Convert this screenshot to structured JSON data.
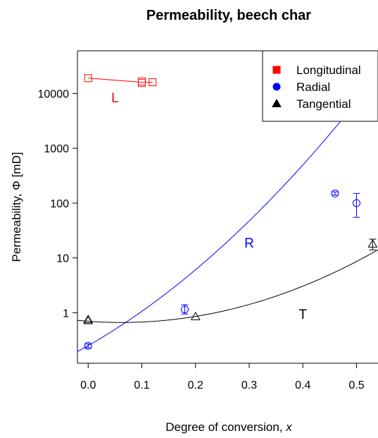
{
  "chart_data": {
    "type": "scatter",
    "title": "Permeability, beech char",
    "xlabel": "Degree of conversion, x",
    "ylabel": "Permeability, Φ [mD]",
    "xlim": [
      -0.02,
      0.54
    ],
    "ylim": [
      0.12,
      60000
    ],
    "y_scale": "log",
    "grid": false,
    "legend_position": "top-right",
    "x_ticks": [
      {
        "value": 0.0,
        "label": "0.0"
      },
      {
        "value": 0.1,
        "label": "0.1"
      },
      {
        "value": 0.2,
        "label": "0.2"
      },
      {
        "value": 0.3,
        "label": "0.3"
      },
      {
        "value": 0.4,
        "label": "0.4"
      },
      {
        "value": 0.5,
        "label": "0.5"
      }
    ],
    "y_ticks": [
      {
        "value": 1,
        "label": "1"
      },
      {
        "value": 10,
        "label": "10"
      },
      {
        "value": 100,
        "label": "100"
      },
      {
        "value": 1000,
        "label": "1000"
      },
      {
        "value": 10000,
        "label": "10000"
      }
    ],
    "series": [
      {
        "name": "Longitudinal",
        "color": "#ff0000",
        "marker": "square",
        "points": [
          {
            "x": 0.0,
            "y": 19000
          },
          {
            "x": 0.1,
            "y": 16500
          },
          {
            "x": 0.1,
            "y": 15500
          },
          {
            "x": 0.12,
            "y": 16000
          }
        ],
        "fit": {
          "type": "line",
          "points": [
            {
              "x": 0.0,
              "y": 19000
            },
            {
              "x": 0.1,
              "y": 16000
            },
            {
              "x": 0.12,
              "y": 16000
            }
          ]
        },
        "curve_label": {
          "text": "L",
          "x": 0.05,
          "y": 8500
        }
      },
      {
        "name": "Radial",
        "color": "#0000ff",
        "marker": "circle",
        "points": [
          {
            "x": 0.0,
            "y": 0.25,
            "err_low": 0.23,
            "err_high": 0.27
          },
          {
            "x": 0.18,
            "y": 1.15,
            "err_low": 0.95,
            "err_high": 1.4
          },
          {
            "x": 0.46,
            "y": 150,
            "err_low": 140,
            "err_high": 160
          },
          {
            "x": 0.5,
            "y": 100,
            "err_low": 55,
            "err_high": 150
          }
        ],
        "fit": {
          "type": "curve",
          "log10_poly": [
            -0.6,
            5.6,
            6.6
          ]
        },
        "curve_label": {
          "text": "R",
          "x": 0.3,
          "y": 19
        }
      },
      {
        "name": "Tangential",
        "color": "#000000",
        "marker": "triangle",
        "points": [
          {
            "x": 0.0,
            "y": 0.75
          },
          {
            "x": 0.0,
            "y": 0.72
          },
          {
            "x": 0.2,
            "y": 0.85
          },
          {
            "x": 0.53,
            "y": 18,
            "err_low": 14,
            "err_high": 22
          }
        ],
        "fit": {
          "type": "curve",
          "log10_poly": [
            -0.155,
            -0.72,
            5.8
          ]
        },
        "curve_label": {
          "text": "T",
          "x": 0.4,
          "y": 0.95
        }
      }
    ]
  }
}
